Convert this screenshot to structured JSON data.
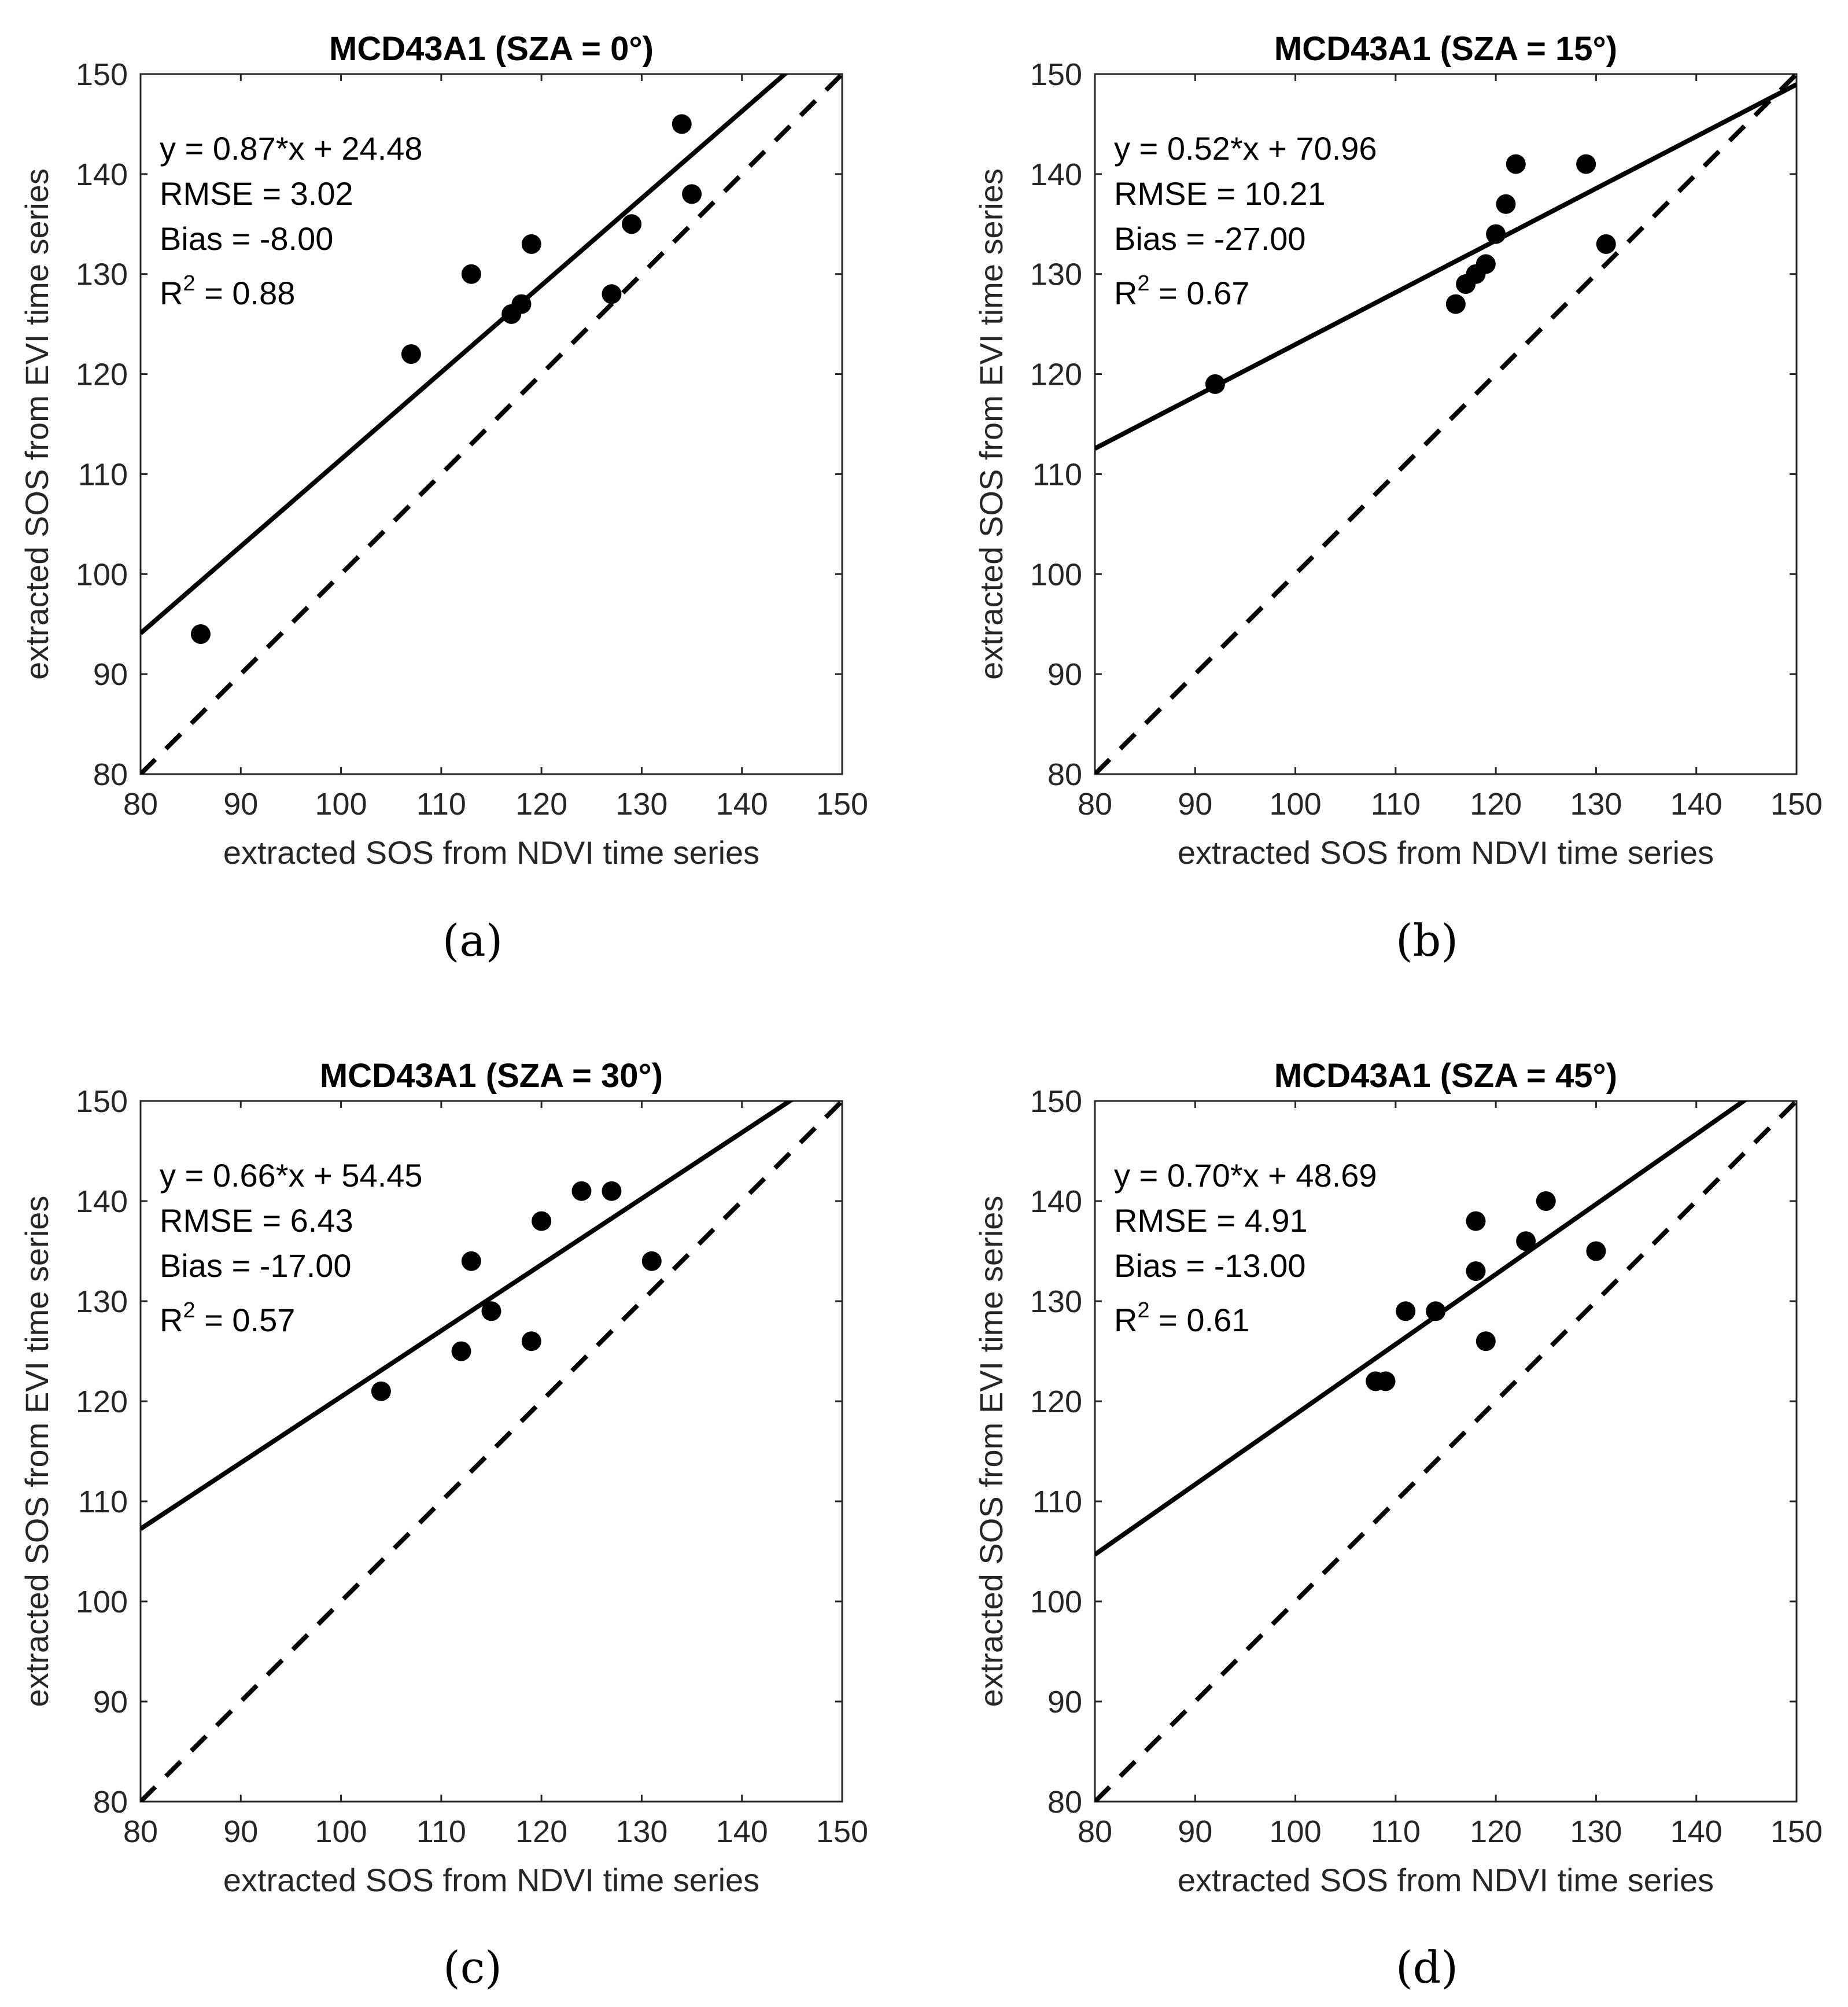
{
  "chart_data": [
    {
      "type": "scatter",
      "panel_label": "(a)",
      "title": "MCD43A1 (SZA = 0°)",
      "xlabel": "extracted SOS from NDVI time series",
      "ylabel": "extracted SOS from EVI time series",
      "xlim": [
        80,
        150
      ],
      "ylim": [
        80,
        150
      ],
      "xticks": [
        80,
        90,
        100,
        110,
        120,
        130,
        140,
        150
      ],
      "yticks": [
        80,
        90,
        100,
        110,
        120,
        130,
        140,
        150
      ],
      "annotation_lines": [
        "y = 0.87*x + 24.48",
        "RMSE = 3.02",
        "Bias = -8.00"
      ],
      "r2_prefix": "R",
      "r2_sup": "2",
      "r2_value": " = 0.88",
      "fit": {
        "slope": 0.87,
        "intercept": 24.48
      },
      "points": [
        [
          86,
          94
        ],
        [
          107,
          122
        ],
        [
          113,
          130
        ],
        [
          117,
          126
        ],
        [
          118,
          127
        ],
        [
          119,
          133
        ],
        [
          127,
          128
        ],
        [
          129,
          135
        ],
        [
          134,
          145
        ],
        [
          135,
          138
        ]
      ]
    },
    {
      "type": "scatter",
      "panel_label": "(b)",
      "title": "MCD43A1 (SZA = 15°)",
      "xlabel": "extracted SOS from NDVI time series",
      "ylabel": "extracted SOS from EVI time series",
      "xlim": [
        80,
        150
      ],
      "ylim": [
        80,
        150
      ],
      "xticks": [
        80,
        90,
        100,
        110,
        120,
        130,
        140,
        150
      ],
      "yticks": [
        80,
        90,
        100,
        110,
        120,
        130,
        140,
        150
      ],
      "annotation_lines": [
        "y = 0.52*x + 70.96",
        "RMSE = 10.21",
        "Bias = -27.00"
      ],
      "r2_prefix": "R",
      "r2_sup": "2",
      "r2_value": " = 0.67",
      "fit": {
        "slope": 0.52,
        "intercept": 70.96
      },
      "points": [
        [
          92,
          119
        ],
        [
          116,
          127
        ],
        [
          117,
          129
        ],
        [
          118,
          130
        ],
        [
          119,
          131
        ],
        [
          120,
          134
        ],
        [
          121,
          137
        ],
        [
          122,
          141
        ],
        [
          129,
          141
        ],
        [
          131,
          133
        ]
      ]
    },
    {
      "type": "scatter",
      "panel_label": "(c)",
      "title": "MCD43A1 (SZA = 30°)",
      "xlabel": "extracted SOS from NDVI time series",
      "ylabel": "extracted SOS from EVI time series",
      "xlim": [
        80,
        150
      ],
      "ylim": [
        80,
        150
      ],
      "xticks": [
        80,
        90,
        100,
        110,
        120,
        130,
        140,
        150
      ],
      "yticks": [
        80,
        90,
        100,
        110,
        120,
        130,
        140,
        150
      ],
      "annotation_lines": [
        "y = 0.66*x + 54.45",
        "RMSE = 6.43",
        "Bias = -17.00"
      ],
      "r2_prefix": "R",
      "r2_sup": "2",
      "r2_value": " = 0.57",
      "fit": {
        "slope": 0.66,
        "intercept": 54.45
      },
      "points": [
        [
          104,
          121
        ],
        [
          112,
          125
        ],
        [
          113,
          134
        ],
        [
          115,
          129
        ],
        [
          119,
          126
        ],
        [
          120,
          138
        ],
        [
          124,
          141
        ],
        [
          127,
          141
        ],
        [
          131,
          134
        ]
      ]
    },
    {
      "type": "scatter",
      "panel_label": "(d)",
      "title": "MCD43A1 (SZA = 45°)",
      "xlabel": "extracted SOS from NDVI time series",
      "ylabel": "extracted SOS from EVI time series",
      "xlim": [
        80,
        150
      ],
      "ylim": [
        80,
        150
      ],
      "xticks": [
        80,
        90,
        100,
        110,
        120,
        130,
        140,
        150
      ],
      "yticks": [
        80,
        90,
        100,
        110,
        120,
        130,
        140,
        150
      ],
      "annotation_lines": [
        "y = 0.70*x + 48.69",
        "RMSE = 4.91",
        "Bias = -13.00"
      ],
      "r2_prefix": "R",
      "r2_sup": "2",
      "r2_value": " = 0.61",
      "fit": {
        "slope": 0.7,
        "intercept": 48.69
      },
      "points": [
        [
          108,
          122
        ],
        [
          109,
          122
        ],
        [
          111,
          129
        ],
        [
          114,
          129
        ],
        [
          118,
          138
        ],
        [
          118,
          133
        ],
        [
          119,
          126
        ],
        [
          123,
          136
        ],
        [
          125,
          140
        ],
        [
          130,
          135
        ]
      ]
    }
  ]
}
